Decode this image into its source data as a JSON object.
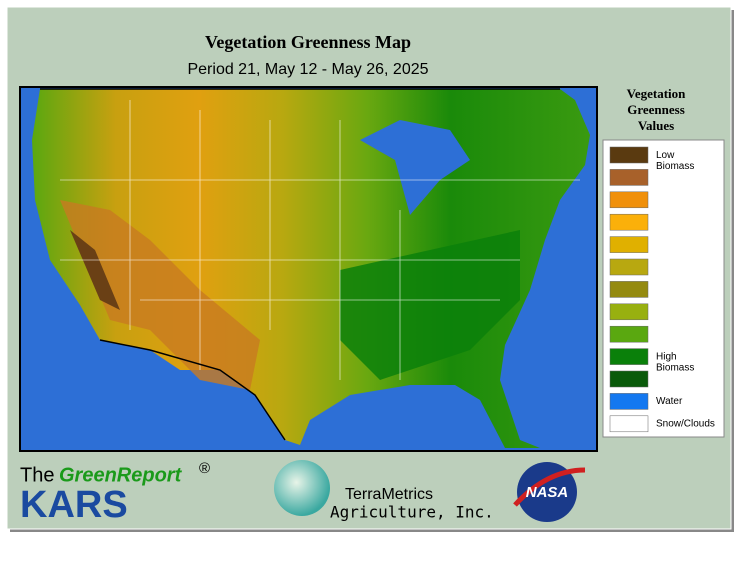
{
  "header": {
    "title": "Vegetation Greenness Map",
    "subtitle": "Period 21, May 12 - May 26, 2025"
  },
  "legend": {
    "title": [
      "Vegetation",
      "Greenness",
      "Values"
    ],
    "items": [
      {
        "color": "#5a3a10",
        "label": "Low Biomass"
      },
      {
        "color": "#a8612a"
      },
      {
        "color": "#f0900a"
      },
      {
        "color": "#fbb00a"
      },
      {
        "color": "#e0b000"
      },
      {
        "color": "#b8a810"
      },
      {
        "color": "#948a10"
      },
      {
        "color": "#98b010"
      },
      {
        "color": "#5aa810"
      },
      {
        "color": "#0a800a",
        "label": "High Biomass"
      },
      {
        "color": "#0a5a0a"
      },
      {
        "color": "#1478f0",
        "label": "Water"
      },
      {
        "color": "#ffffff",
        "label": "Snow/Clouds"
      }
    ]
  },
  "footer": {
    "the": "The",
    "greenreport": "GreenReport",
    "registered": "®",
    "kars": "KARS",
    "terrametrics": "TerraMetrics",
    "agriculture": "Agriculture, Inc.",
    "nasa": "NASA"
  }
}
